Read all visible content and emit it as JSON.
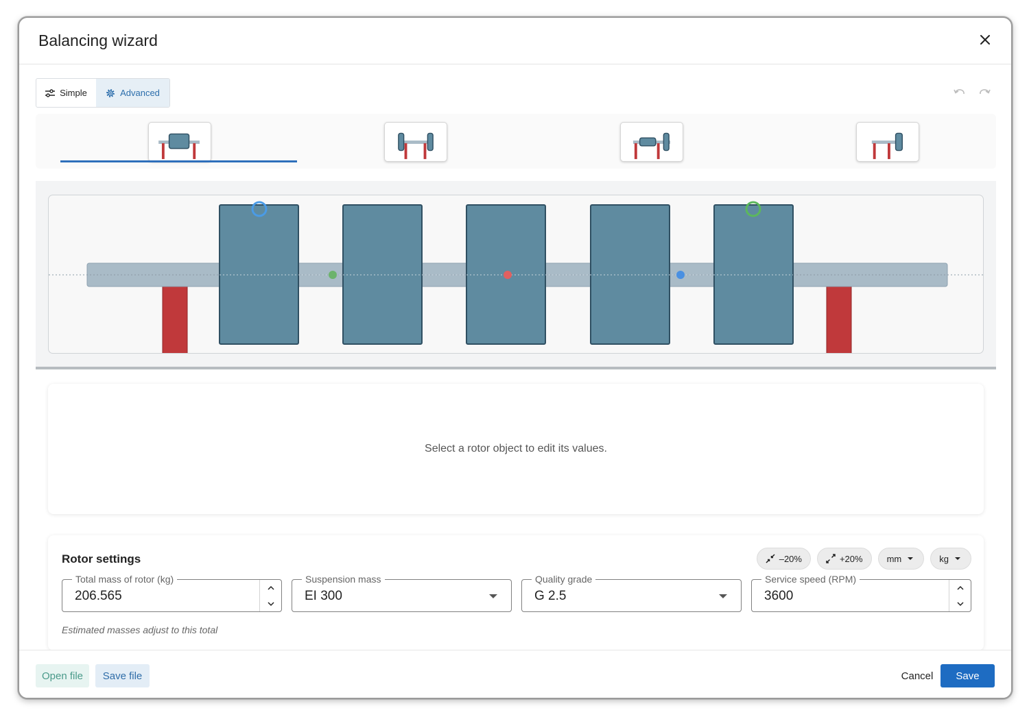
{
  "dialog": {
    "title": "Balancing wizard"
  },
  "mode_toggle": {
    "simple_label": "Simple",
    "advanced_label": "Advanced",
    "selected": "Advanced"
  },
  "presets": [
    {
      "name": "center-overhung",
      "selected": true
    },
    {
      "name": "between-bearings",
      "selected": false
    },
    {
      "name": "overhung-one-side",
      "selected": false
    },
    {
      "name": "single-end",
      "selected": false
    }
  ],
  "rotor_visual": {
    "discs": 5,
    "bearings": 2,
    "markers": [
      {
        "type": "ring",
        "color": "#4a9be6"
      },
      {
        "type": "ring",
        "color": "#5cb85c"
      },
      {
        "type": "dot",
        "color": "#6cb36c"
      },
      {
        "type": "dot",
        "color": "#e06060"
      },
      {
        "type": "dot",
        "color": "#4a90e2"
      }
    ]
  },
  "edit_panel": {
    "message": "Select a rotor object to edit its values."
  },
  "rotor_settings": {
    "title": "Rotor settings",
    "chips": {
      "shrink_label": "–20%",
      "grow_label": "+20%",
      "length_unit": "mm",
      "mass_unit": "kg"
    },
    "fields": {
      "total_mass": {
        "label": "Total mass of rotor (kg)",
        "value": "206.565"
      },
      "suspension_mass": {
        "label": "Suspension mass",
        "value": "EI 300"
      },
      "quality_grade": {
        "label": "Quality grade",
        "value": "G 2.5"
      },
      "service_speed": {
        "label": "Service speed (RPM)",
        "value": "3600"
      }
    },
    "helper_text": "Estimated masses adjust to this total"
  },
  "footer": {
    "open_file": "Open file",
    "save_file": "Save file",
    "cancel": "Cancel",
    "save": "Save"
  },
  "colors": {
    "accent": "#1e6cc2",
    "disc": "#5f8ba0",
    "shaft": "#a9bbc7",
    "bearing": "#c0393b"
  }
}
